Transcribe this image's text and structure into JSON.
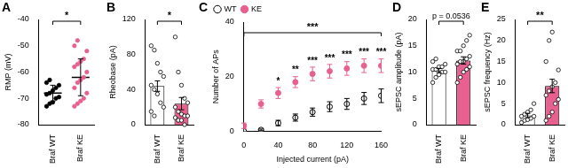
{
  "chart_data": [
    {
      "title": "A",
      "type": "strip",
      "y_label": "RMP (mV)",
      "categories": [
        "Braf WT",
        "Braf KE"
      ],
      "values": [
        -68,
        -62
      ],
      "errors": [
        3,
        7
      ],
      "points": [
        [
          -73,
          -72,
          -71.5,
          -70,
          -69.5,
          -68.5,
          -68,
          -67,
          -66,
          -65,
          -64,
          -63
        ],
        [
          -73,
          -72,
          -71,
          -70,
          -68,
          -66,
          -64,
          -63,
          -62,
          -60,
          -58,
          -57,
          -56,
          -55,
          -52,
          -50,
          -48
        ]
      ],
      "colors": [
        "#000000",
        "#e8608f"
      ],
      "marker": "filled",
      "ylim": [
        -80,
        -40
      ],
      "yticks": [
        -80,
        -70,
        -60,
        -50,
        -40
      ],
      "grid": false,
      "annotations": [
        {
          "text": "*"
        }
      ]
    },
    {
      "title": "B",
      "type": "bar",
      "y_label": "Rheobase (pA)",
      "categories": [
        "Braf WT",
        "Braf KE"
      ],
      "values": [
        44,
        24
      ],
      "errors": [
        6,
        7
      ],
      "points": [
        [
          90,
          85,
          70,
          60,
          55,
          45,
          40,
          35,
          25,
          20,
          15,
          10
        ],
        [
          100,
          60,
          45,
          30,
          25,
          20,
          15,
          12,
          10,
          10,
          8,
          5,
          5,
          0
        ]
      ],
      "colors": [
        "#ffffff",
        "#e8608f"
      ],
      "marker": "open",
      "ylim": [
        0,
        120
      ],
      "yticks": [
        0,
        40,
        80,
        120
      ],
      "grid": false,
      "annotations": [
        {
          "text": "*"
        }
      ]
    },
    {
      "title": "C",
      "type": "scatter",
      "x_label": "Injected current (pA)",
      "y_label": "Number of APs",
      "x": [
        0,
        20,
        40,
        60,
        80,
        100,
        120,
        140,
        160
      ],
      "series": [
        {
          "name": "WT",
          "color": "#000000",
          "marker": "open",
          "values": [
            0,
            0.5,
            3,
            5,
            7,
            9,
            10,
            12,
            13
          ],
          "errors": [
            0,
            0.3,
            1,
            1.3,
            1.5,
            1.8,
            2,
            2.2,
            2.5
          ]
        },
        {
          "name": "KE",
          "color": "#e8608f",
          "marker": "filled",
          "values": [
            2,
            10,
            14,
            18,
            21,
            22,
            23,
            24,
            24
          ],
          "errors": [
            1,
            1.5,
            2,
            2,
            2.5,
            2.5,
            2.5,
            2.5,
            2.5
          ]
        }
      ],
      "xlim": [
        0,
        160
      ],
      "xticks": [
        0,
        40,
        80,
        120,
        160
      ],
      "ylim": [
        0,
        40
      ],
      "yticks": [
        0,
        20,
        40
      ],
      "grid": false,
      "legend": "top-left",
      "annotations": [
        {
          "text": "***"
        },
        {
          "x": 40,
          "text": "*"
        },
        {
          "x": 60,
          "text": "**"
        },
        {
          "x": 80,
          "text": "***"
        },
        {
          "x": 100,
          "text": "***"
        },
        {
          "x": 120,
          "text": "***"
        },
        {
          "x": 140,
          "text": "***"
        },
        {
          "x": 160,
          "text": "***"
        }
      ]
    },
    {
      "title": "D",
      "type": "bar",
      "y_label": "sEPSC amplitude (pA)",
      "categories": [
        "Braf WT",
        "Braf KE"
      ],
      "values": [
        10.3,
        12.2
      ],
      "errors": [
        0.4,
        0.7
      ],
      "points": [
        [
          8,
          9,
          9.5,
          10,
          10,
          10.5,
          10.5,
          11,
          11,
          11.5,
          12,
          12.5
        ],
        [
          8,
          9,
          10,
          10.5,
          11,
          11.5,
          12,
          12,
          12.5,
          13,
          14,
          14,
          15,
          16,
          17
        ]
      ],
      "colors": [
        "#ffffff",
        "#e8608f"
      ],
      "marker": "open",
      "ylim": [
        0,
        20
      ],
      "yticks": [
        0,
        5,
        10,
        15,
        20
      ],
      "grid": false,
      "annotations": [
        {
          "text": "p = 0.0536"
        }
      ]
    },
    {
      "title": "E",
      "type": "bar",
      "y_label": "sEPSC frequency (Hz)",
      "categories": [
        "Braf WT",
        "Braf KE"
      ],
      "values": [
        2.2,
        9.2
      ],
      "errors": [
        0.5,
        1.6
      ],
      "points": [
        [
          0.5,
          1,
          1.2,
          1.5,
          2,
          2,
          2.5,
          3,
          3.5,
          5
        ],
        [
          1,
          2,
          3,
          5,
          6,
          7,
          8,
          9,
          10,
          13,
          15,
          20,
          22
        ]
      ],
      "colors": [
        "#ffffff",
        "#e8608f"
      ],
      "marker": "open",
      "ylim": [
        0,
        25
      ],
      "yticks": [
        0,
        5,
        10,
        15,
        20,
        25
      ],
      "grid": false,
      "annotations": [
        {
          "text": "**"
        }
      ]
    }
  ]
}
